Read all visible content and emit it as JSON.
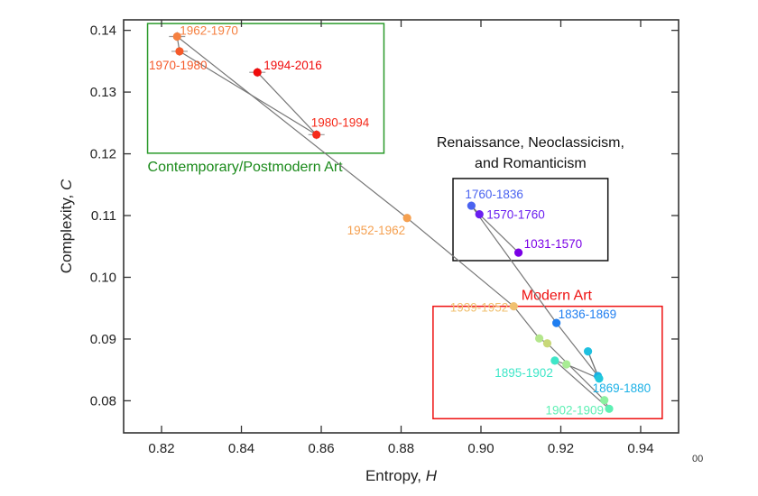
{
  "chart_data": {
    "type": "scatter",
    "title": "",
    "xlabel": "Entropy, ",
    "xlabel_italic": "H",
    "ylabel": "Complexity, ",
    "ylabel_italic": "C",
    "xlim": [
      0.8105,
      0.9495
    ],
    "ylim": [
      0.0748,
      0.1417
    ],
    "xticks": [
      0.82,
      0.84,
      0.86,
      0.88,
      0.9,
      0.92,
      0.94
    ],
    "xtick_labels": [
      "0.82",
      "0.84",
      "0.86",
      "0.88",
      "0.90",
      "0.92",
      "0.94"
    ],
    "yticks": [
      0.08,
      0.09,
      0.1,
      0.11,
      0.12,
      0.13,
      0.14
    ],
    "ytick_labels": [
      "0.08",
      "0.09",
      "0.10",
      "0.11",
      "0.12",
      "0.13",
      "0.14"
    ],
    "grid": false,
    "connecting_line_color": "#777777",
    "points": [
      {
        "id": "1031-1570",
        "label": "1031-1570",
        "H": 0.9094,
        "C": 0.104,
        "color": "#7a00e6",
        "label_pos": "right"
      },
      {
        "id": "1570-1760",
        "label": "1570-1760",
        "H": 0.8996,
        "C": 0.1102,
        "color": "#6a1ef0",
        "label_pos": "right"
      },
      {
        "id": "1760-1836",
        "label": "1760-1836",
        "H": 0.8976,
        "C": 0.1116,
        "color": "#4a63f0",
        "label_pos": "above"
      },
      {
        "id": "1836-1869",
        "label": "1836-1869",
        "H": 0.9189,
        "C": 0.0926,
        "color": "#1f7ef0",
        "label_pos": "right"
      },
      {
        "id": "1869-1880",
        "label": "1869-1880",
        "H": 0.9293,
        "C": 0.084,
        "color": "#1ab0e6",
        "label_pos": "below"
      },
      {
        "id": "p6",
        "label": "",
        "H": 0.9268,
        "C": 0.088,
        "color": "#1ec0e0",
        "label_pos": "none"
      },
      {
        "id": "p7",
        "label": "",
        "H": 0.9296,
        "C": 0.0836,
        "color": "#22c8dc",
        "label_pos": "none"
      },
      {
        "id": "p8",
        "label": "",
        "H": 0.9214,
        "C": 0.0859,
        "color": "#a8ec94",
        "label_pos": "none"
      },
      {
        "id": "1895-1902",
        "label": "1895-1902",
        "H": 0.9185,
        "C": 0.0865,
        "color": "#3ee6c8",
        "label_pos": "left"
      },
      {
        "id": "1902-1909",
        "label": "1902-1909",
        "H": 0.9321,
        "C": 0.0787,
        "color": "#5ef0b4",
        "label_pos": "left"
      },
      {
        "id": "p11",
        "label": "",
        "H": 0.9309,
        "C": 0.0801,
        "color": "#8cf0a0",
        "label_pos": "none"
      },
      {
        "id": "p12",
        "label": "",
        "H": 0.9166,
        "C": 0.0893,
        "color": "#c8d878",
        "label_pos": "none"
      },
      {
        "id": "p13",
        "label": "",
        "H": 0.9146,
        "C": 0.0901,
        "color": "#b4e68c",
        "label_pos": "none"
      },
      {
        "id": "1939-1952",
        "label": "1939-1952",
        "H": 0.9082,
        "C": 0.0953,
        "color": "#f0c070",
        "label_pos": "left"
      },
      {
        "id": "1952-1962",
        "label": "1952-1962",
        "H": 0.8815,
        "C": 0.1096,
        "color": "#f5a050",
        "label_pos": "left"
      },
      {
        "id": "1962-1970",
        "label": "1962-1970",
        "H": 0.8239,
        "C": 0.139,
        "color": "#f58040",
        "label_pos": "right",
        "errorbar": true
      },
      {
        "id": "1970-1980",
        "label": "1970-1980",
        "H": 0.8245,
        "C": 0.1366,
        "color": "#f55a2a",
        "label_pos": "below",
        "errorbar": true
      },
      {
        "id": "1980-1994",
        "label": "1980-1994",
        "H": 0.8588,
        "C": 0.1231,
        "color": "#f52a1a",
        "label_pos": "above",
        "errorbar": true
      },
      {
        "id": "1994-2016",
        "label": "1994-2016",
        "H": 0.844,
        "C": 0.1332,
        "color": "#f00c0c",
        "label_pos": "right",
        "errorbar": true
      }
    ],
    "regions": [
      {
        "id": "contemporary",
        "label": "Contemporary/Postmodern Art",
        "color": "#2a9a2a",
        "text_color": "#1a8a1a",
        "H_range": [
          0.8165,
          0.8757
        ],
        "C_range": [
          0.1201,
          0.1411
        ],
        "label_pos": "below"
      },
      {
        "id": "renaissance",
        "label_lines": [
          "Renaissance, Neoclassicism,",
          "and Romanticism"
        ],
        "color": "#111111",
        "text_color": "#111111",
        "H_range": [
          0.893,
          0.9318
        ],
        "C_range": [
          0.1027,
          0.116
        ],
        "label_pos": "above"
      },
      {
        "id": "modern",
        "label": "Modern Art",
        "color": "#ee1111",
        "text_color": "#ee1111",
        "H_range": [
          0.888,
          0.9454
        ],
        "C_range": [
          0.0771,
          0.0953
        ],
        "label_pos": "above"
      }
    ]
  },
  "misc": {
    "corner_fragment": "00"
  }
}
